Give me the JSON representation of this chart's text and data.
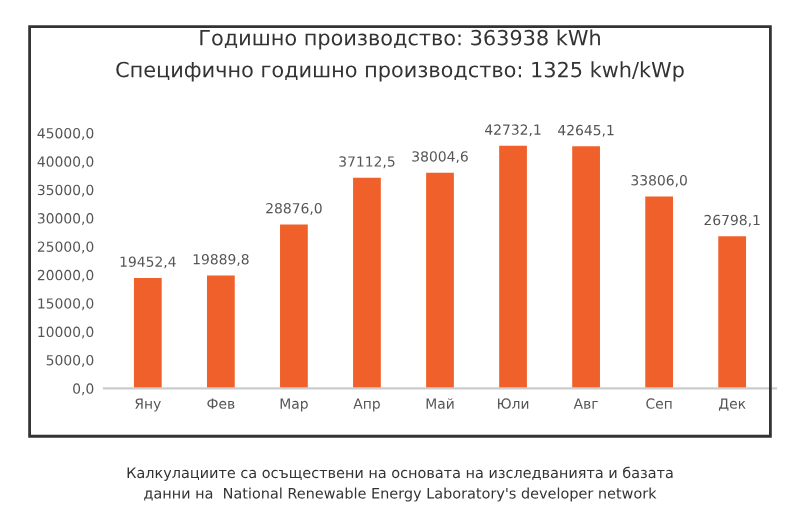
{
  "chart_data": {
    "type": "bar",
    "title": "Годишно производство: 363938 kWh",
    "subtitle": "Специфично годишно производство: 1325 kwh/kWp",
    "categories": [
      "Яну",
      "Фев",
      "Мар",
      "Апр",
      "Май",
      "Юли",
      "Авг",
      "Сеп",
      "Дек"
    ],
    "values": [
      19452.4,
      19889.8,
      28876.0,
      37112.5,
      38004.6,
      42732.1,
      42645.1,
      33806.0,
      26798.1
    ],
    "value_labels": [
      "19452,4",
      "19889,8",
      "28876,0",
      "37112,5",
      "38004,6",
      "42732,1",
      "42645,1",
      "33806,0",
      "26798,1"
    ],
    "color": "#f0602a",
    "ylim": [
      0,
      45000
    ],
    "yticks": [
      {
        "value": 0,
        "label": "0,0"
      },
      {
        "value": 5000,
        "label": "5000,0"
      },
      {
        "value": 10000,
        "label": "10000,0"
      },
      {
        "value": 15000,
        "label": "15000,0"
      },
      {
        "value": 20000,
        "label": "20000,0"
      },
      {
        "value": 25000,
        "label": "25000,0"
      },
      {
        "value": 30000,
        "label": "30000,0"
      },
      {
        "value": 35000,
        "label": "35000,0"
      },
      {
        "value": 40000,
        "label": "40000,0"
      },
      {
        "value": 45000,
        "label": "45000,0"
      }
    ],
    "grid": false,
    "annotations": [
      "Калкулациите са осъществени на основата на изследванията и базата\nданни на  National Renewable Energy Laboratory's developer network"
    ]
  }
}
